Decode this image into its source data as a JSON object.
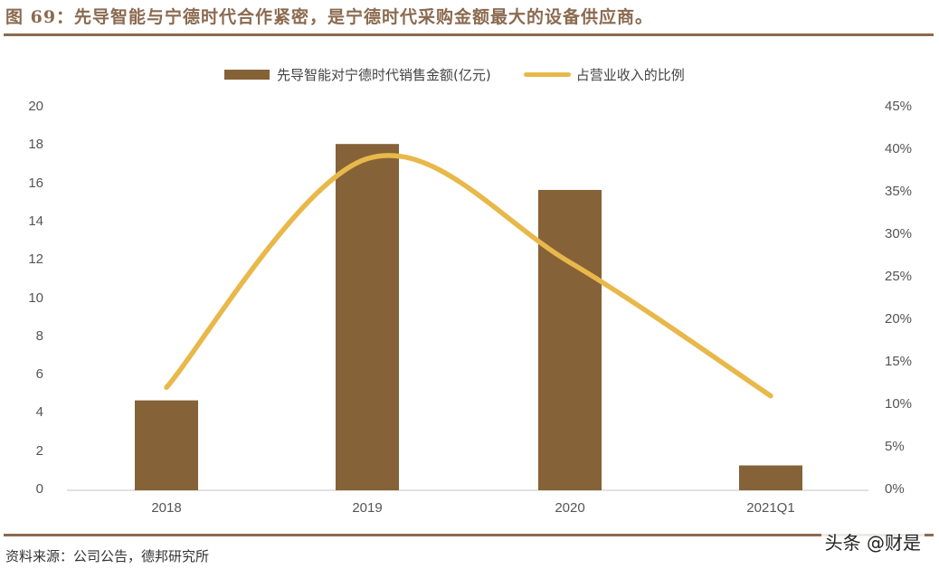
{
  "header": {
    "title": "图 69：先导智能与宁德时代合作紧密，是宁德时代采购金额最大的设备供应商。"
  },
  "footer": {
    "source": "资料来源：公司公告，德邦研究所",
    "watermark": "头条 @财是"
  },
  "legend": {
    "bar_label": "先导智能对宁德时代销售金额(亿元)",
    "line_label": "占营业收入的比例"
  },
  "colors": {
    "bar": "#856237",
    "line": "#e8b84a",
    "title": "#8b6a4f",
    "axis": "#d9d9d9"
  },
  "axes": {
    "left_ticks": [
      "20",
      "18",
      "16",
      "14",
      "12",
      "10",
      "8",
      "6",
      "4",
      "2",
      "0"
    ],
    "right_ticks": [
      "45%",
      "40%",
      "35%",
      "30%",
      "25%",
      "20%",
      "15%",
      "10%",
      "5%",
      "0%"
    ],
    "x_ticks": [
      "2018",
      "2019",
      "2020",
      "2021Q1"
    ]
  },
  "chart_data": {
    "type": "bar",
    "title": "先导智能与宁德时代合作紧密，是宁德时代采购金额最大的设备供应商。",
    "categories": [
      "2018",
      "2019",
      "2020",
      "2021Q1"
    ],
    "series": [
      {
        "name": "先导智能对宁德时代销售金额(亿元)",
        "type": "bar",
        "axis": "left",
        "values": [
          4.7,
          18.1,
          15.7,
          1.3
        ]
      },
      {
        "name": "占营业收入的比例",
        "type": "line",
        "axis": "right",
        "smooth": true,
        "values": [
          0.121,
          0.39,
          0.268,
          0.111
        ]
      }
    ],
    "xlabel": "",
    "ylabel": "",
    "ylim": [
      0,
      20
    ],
    "y2lim": [
      0,
      0.45
    ],
    "grid": false,
    "legend_position": "top"
  }
}
